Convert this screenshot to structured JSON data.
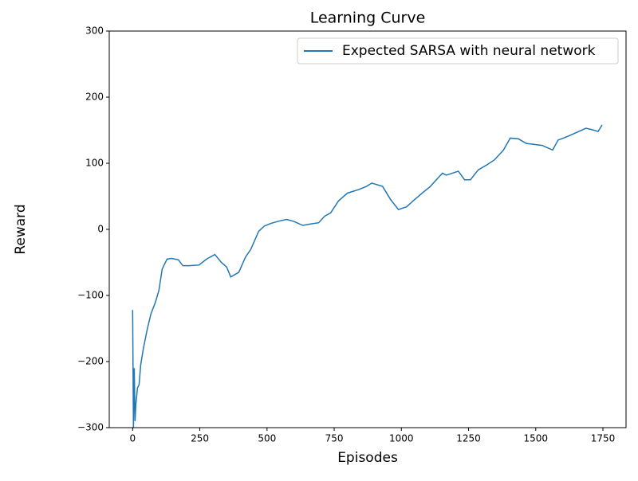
{
  "chart_data": {
    "type": "line",
    "title": "Learning Curve",
    "x_label": "Episodes",
    "y_label": "Reward",
    "x": [
      0,
      3,
      6,
      9,
      12,
      18,
      24,
      30,
      40,
      55,
      68,
      85,
      98,
      110,
      128,
      145,
      170,
      187,
      210,
      247,
      275,
      306,
      330,
      350,
      365,
      395,
      420,
      440,
      469,
      490,
      514,
      540,
      573,
      600,
      633,
      660,
      692,
      715,
      737,
      766,
      800,
      840,
      870,
      890,
      930,
      960,
      989,
      1019,
      1049,
      1078,
      1108,
      1130,
      1153,
      1167,
      1190,
      1212,
      1235,
      1257,
      1286,
      1320,
      1346,
      1380,
      1405,
      1435,
      1465,
      1524,
      1563,
      1583,
      1615,
      1643,
      1687,
      1717,
      1732,
      1747
    ],
    "series": [
      {
        "name": "Expected SARSA with neural network",
        "color": "#1f77b4",
        "values": [
          -122,
          -300,
          -210,
          -290,
          -265,
          -240,
          -235,
          -205,
          -180,
          -150,
          -128,
          -110,
          -92,
          -60,
          -45,
          -44,
          -46,
          -55,
          -55,
          -54,
          -45,
          -38,
          -50,
          -57,
          -72,
          -65,
          -42,
          -30,
          -3,
          5,
          9,
          12,
          15,
          12,
          6,
          8,
          10,
          20,
          25,
          43,
          55,
          60,
          65,
          70,
          65,
          45,
          30,
          34,
          45,
          55,
          65,
          75,
          85,
          82,
          85,
          88,
          75,
          75,
          90,
          98,
          105,
          120,
          138,
          137,
          130,
          127,
          120,
          135,
          140,
          145,
          153,
          150,
          148,
          158
        ]
      }
    ],
    "xlim": [
      -87,
      1836
    ],
    "ylim": [
      -300,
      300
    ],
    "xticks": [
      0,
      250,
      500,
      750,
      1000,
      1250,
      1500,
      1750
    ],
    "yticks": [
      {
        "value": -300,
        "label": "−300"
      },
      {
        "value": -200,
        "label": "−200"
      },
      {
        "value": -100,
        "label": "−100"
      },
      0,
      100,
      200,
      300
    ],
    "legend": "upper right"
  }
}
